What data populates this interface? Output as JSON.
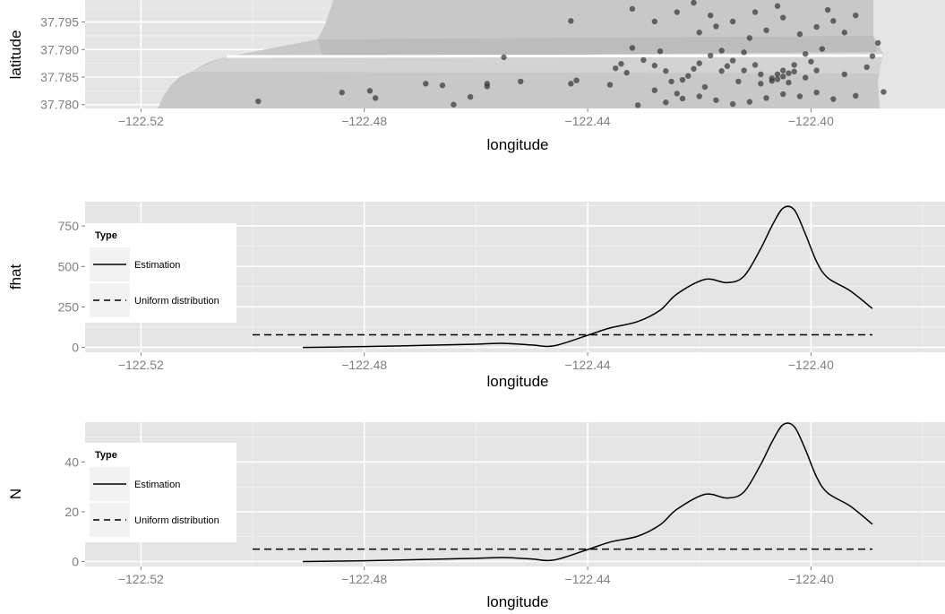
{
  "chart_data": [
    {
      "type": "scatter",
      "xlabel": "longitude",
      "ylabel": "latitude",
      "xlim": [
        -122.53,
        -122.376
      ],
      "ylim": [
        37.7793,
        37.799
      ],
      "x_ticks": [
        "-122.52",
        "-122.48",
        "-122.44",
        "-122.40"
      ],
      "x_tick_values": [
        -122.52,
        -122.48,
        -122.44,
        -122.4
      ],
      "y_ticks": [
        "37.780",
        "37.785",
        "37.790",
        "37.795"
      ],
      "y_tick_values": [
        37.78,
        37.785,
        37.79,
        37.795
      ],
      "grid": true,
      "background_map": true,
      "point_color": "#333333",
      "points": [
        [
          -122.499,
          37.7806
        ],
        [
          -122.484,
          37.7822
        ],
        [
          -122.479,
          37.7825
        ],
        [
          -122.478,
          37.7812
        ],
        [
          -122.469,
          37.7838
        ],
        [
          -122.466,
          37.7835
        ],
        [
          -122.464,
          37.78
        ],
        [
          -122.461,
          37.7814
        ],
        [
          -122.458,
          37.7838
        ],
        [
          -122.458,
          37.7833
        ],
        [
          -122.455,
          37.7886
        ],
        [
          -122.452,
          37.7842
        ],
        [
          -122.443,
          37.7838
        ],
        [
          -122.442,
          37.7844
        ],
        [
          -122.443,
          37.7952
        ],
        [
          -122.436,
          37.7836
        ],
        [
          -122.434,
          37.7874
        ],
        [
          -122.435,
          37.7866
        ],
        [
          -122.432,
          37.7903
        ],
        [
          -122.43,
          37.7881
        ],
        [
          -122.428,
          37.7871
        ],
        [
          -122.426,
          37.7861
        ],
        [
          -122.425,
          37.7842
        ],
        [
          -122.424,
          37.782
        ],
        [
          -122.423,
          37.7845
        ],
        [
          -122.421,
          37.7865
        ],
        [
          -122.42,
          37.7875
        ],
        [
          -122.418,
          37.7889
        ],
        [
          -122.416,
          37.7898
        ],
        [
          -122.414,
          37.788
        ],
        [
          -122.412,
          37.7862
        ],
        [
          -122.41,
          37.7872
        ],
        [
          -122.409,
          37.7855
        ],
        [
          -122.407,
          37.7848
        ],
        [
          -122.406,
          37.7855
        ],
        [
          -122.405,
          37.7862
        ],
        [
          -122.404,
          37.784
        ],
        [
          -122.403,
          37.7872
        ],
        [
          -122.401,
          37.7892
        ],
        [
          -122.4,
          37.7878
        ],
        [
          -122.398,
          37.7901
        ],
        [
          -122.396,
          37.7952
        ],
        [
          -122.394,
          37.7855
        ],
        [
          -122.392,
          37.7962
        ],
        [
          -122.39,
          37.7868
        ],
        [
          -122.389,
          37.7888
        ],
        [
          -122.388,
          37.7912
        ],
        [
          -122.387,
          37.7823
        ],
        [
          -122.392,
          37.7816
        ],
        [
          -122.396,
          37.781
        ],
        [
          -122.399,
          37.7822
        ],
        [
          -122.402,
          37.7815
        ],
        [
          -122.405,
          37.7819
        ],
        [
          -122.408,
          37.7812
        ],
        [
          -122.411,
          37.7805
        ],
        [
          -122.414,
          37.7801
        ],
        [
          -122.417,
          37.7808
        ],
        [
          -122.42,
          37.7815
        ],
        [
          -122.423,
          37.7811
        ],
        [
          -122.426,
          37.7804
        ],
        [
          -122.428,
          37.7826
        ],
        [
          -122.431,
          37.7799
        ],
        [
          -122.42,
          37.7931
        ],
        [
          -122.417,
          37.7942
        ],
        [
          -122.414,
          37.7951
        ],
        [
          -122.411,
          37.7921
        ],
        [
          -122.408,
          37.7935
        ],
        [
          -122.405,
          37.7958
        ],
        [
          -122.402,
          37.7928
        ],
        [
          -122.399,
          37.7941
        ],
        [
          -122.397,
          37.7972
        ],
        [
          -122.394,
          37.7931
        ],
        [
          -122.41,
          37.7968
        ],
        [
          -122.406,
          37.7979
        ],
        [
          -122.418,
          37.7962
        ],
        [
          -122.413,
          37.7842
        ],
        [
          -122.416,
          37.7861
        ],
        [
          -122.419,
          37.7832
        ],
        [
          -122.422,
          37.7852
        ],
        [
          -122.409,
          37.7838
        ],
        [
          -122.407,
          37.7843
        ],
        [
          -122.406,
          37.7846
        ],
        [
          -122.405,
          37.7851
        ],
        [
          -122.404,
          37.7857
        ],
        [
          -122.403,
          37.786
        ],
        [
          -122.412,
          37.7895
        ],
        [
          -122.415,
          37.787
        ],
        [
          -122.399,
          37.7862
        ],
        [
          -122.401,
          37.7849
        ],
        [
          -122.428,
          37.7951
        ],
        [
          -122.432,
          37.7974
        ],
        [
          -122.424,
          37.7968
        ],
        [
          -122.421,
          37.7985
        ],
        [
          -122.427,
          37.7897
        ],
        [
          -122.433,
          37.7858
        ]
      ]
    },
    {
      "type": "line",
      "xlabel": "longitude",
      "ylabel": "fhat",
      "xlim": [
        -122.53,
        -122.376
      ],
      "ylim": [
        -30,
        900
      ],
      "x_ticks": [
        "-122.52",
        "-122.48",
        "-122.44",
        "-122.40"
      ],
      "x_tick_values": [
        -122.52,
        -122.48,
        -122.44,
        -122.4
      ],
      "y_ticks": [
        "0",
        "250",
        "500",
        "750"
      ],
      "y_tick_values": [
        0,
        250,
        500,
        750
      ],
      "grid": true,
      "legend": {
        "title": "Type",
        "placement": "top-left",
        "entries": [
          {
            "label": "Estimation",
            "linetype": "solid"
          },
          {
            "label": "Uniform distribution",
            "linetype": "dashed"
          }
        ]
      },
      "series": [
        {
          "linetype": "solid",
          "x": [
            -122.491,
            -122.48,
            -122.47,
            -122.46,
            -122.455,
            -122.45,
            -122.446,
            -122.44,
            -122.436,
            -122.431,
            -122.427,
            -122.424,
            -122.419,
            -122.415,
            -122.412,
            -122.409,
            -122.407,
            -122.405,
            -122.403,
            -122.401,
            -122.399,
            -122.397,
            -122.393,
            -122.389
          ],
          "y": [
            0,
            5,
            12,
            20,
            25,
            15,
            10,
            75,
            120,
            160,
            230,
            330,
            420,
            400,
            440,
            610,
            750,
            860,
            850,
            700,
            530,
            430,
            350,
            240
          ]
        },
        {
          "linetype": "dashed",
          "x": [
            -122.5,
            -122.389
          ],
          "y": [
            78,
            78
          ]
        }
      ]
    },
    {
      "type": "line",
      "xlabel": "longitude",
      "ylabel": "N",
      "xlim": [
        -122.53,
        -122.376
      ],
      "ylim": [
        -2,
        56
      ],
      "x_ticks": [
        "-122.52",
        "-122.48",
        "-122.44",
        "-122.40"
      ],
      "x_tick_values": [
        -122.52,
        -122.48,
        -122.44,
        -122.4
      ],
      "y_ticks": [
        "0",
        "20",
        "40"
      ],
      "y_tick_values": [
        0,
        20,
        40
      ],
      "grid": true,
      "legend": {
        "title": "Type",
        "placement": "top-left",
        "entries": [
          {
            "label": "Estimation",
            "linetype": "solid"
          },
          {
            "label": "Uniform distribution",
            "linetype": "dashed"
          }
        ]
      },
      "series": [
        {
          "linetype": "solid",
          "x": [
            -122.491,
            -122.48,
            -122.47,
            -122.46,
            -122.455,
            -122.45,
            -122.446,
            -122.44,
            -122.436,
            -122.431,
            -122.427,
            -122.424,
            -122.419,
            -122.415,
            -122.412,
            -122.409,
            -122.407,
            -122.405,
            -122.403,
            -122.401,
            -122.399,
            -122.397,
            -122.393,
            -122.389
          ],
          "y": [
            0,
            0.3,
            0.8,
            1.3,
            1.6,
            1.0,
            0.6,
            4.8,
            7.8,
            10.2,
            14.8,
            21,
            27,
            25.5,
            28,
            39,
            48,
            55,
            54.2,
            45,
            34,
            27.5,
            22.3,
            15
          ]
        },
        {
          "linetype": "dashed",
          "x": [
            -122.5,
            -122.389
          ],
          "y": [
            5,
            5
          ]
        }
      ]
    }
  ]
}
